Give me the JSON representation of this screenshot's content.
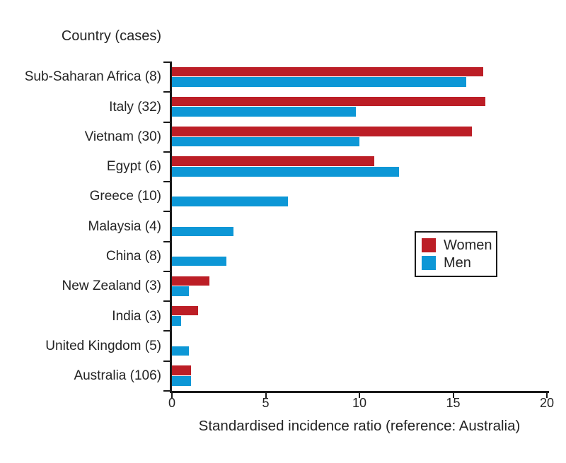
{
  "figure": {
    "y_axis_title": "Country (cases)",
    "x_axis_label": "Standardised incidence ratio (reference: Australia)"
  },
  "chart_data": {
    "type": "bar",
    "orientation": "horizontal",
    "title": "Country (cases)",
    "xlabel": "Standardised incidence ratio (reference: Australia)",
    "xlim": [
      0,
      20
    ],
    "xticks": [
      0,
      5,
      10,
      15,
      20
    ],
    "grid": false,
    "legend_position": "center-right",
    "categories": [
      "Sub-Saharan Africa (8)",
      "Italy (32)",
      "Vietnam (30)",
      "Egypt (6)",
      "Greece (10)",
      "Malaysia (4)",
      "China (8)",
      "New Zealand (3)",
      "India (3)",
      "United Kingdom (5)",
      "Australia (106)"
    ],
    "series": [
      {
        "name": "Women",
        "color": "#bc1e26",
        "values": [
          16.6,
          16.7,
          16.0,
          10.8,
          0,
          0,
          0,
          2.0,
          1.4,
          0,
          1.0
        ]
      },
      {
        "name": "Men",
        "color": "#0d97d6",
        "values": [
          15.7,
          9.8,
          10.0,
          12.1,
          6.2,
          3.3,
          2.9,
          0.9,
          0.5,
          0.9,
          1.0
        ]
      }
    ],
    "colors": {
      "women": "#bc1e26",
      "men": "#0d97d6",
      "axis": "#1a1a1a",
      "text": "#242424"
    }
  }
}
